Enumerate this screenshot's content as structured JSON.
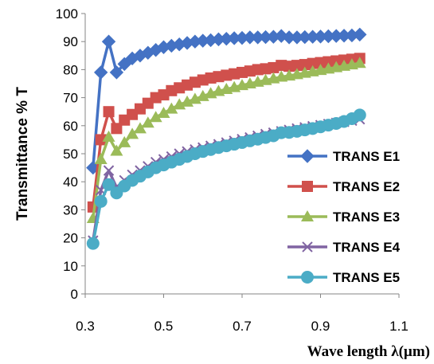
{
  "chart_data": {
    "type": "line",
    "xlabel": "Wave length  λ(µm)",
    "ylabel": "Transmittance % T",
    "xlim": [
      0.3,
      1.1
    ],
    "ylim": [
      0,
      100
    ],
    "xticks": [
      "0.3",
      "0.5",
      "0.7",
      "0.9",
      "1.1"
    ],
    "yticks": [
      "0",
      "10",
      "20",
      "30",
      "40",
      "50",
      "60",
      "70",
      "80",
      "90",
      "100"
    ],
    "grid": false,
    "legend_position": "right",
    "x": [
      0.32,
      0.34,
      0.36,
      0.38,
      0.4,
      0.42,
      0.44,
      0.46,
      0.48,
      0.5,
      0.52,
      0.54,
      0.56,
      0.58,
      0.6,
      0.62,
      0.64,
      0.66,
      0.68,
      0.7,
      0.72,
      0.74,
      0.76,
      0.78,
      0.8,
      0.82,
      0.84,
      0.86,
      0.88,
      0.9,
      0.92,
      0.94,
      0.96,
      0.98,
      1.0
    ],
    "series": [
      {
        "name": "TRANS E1",
        "color": "#4472c4",
        "marker": "diamond",
        "values": [
          45,
          79,
          90,
          79,
          82,
          84,
          85,
          86,
          87,
          88,
          88.5,
          89,
          89.5,
          90,
          90.3,
          90.5,
          90.8,
          91,
          91.2,
          91.3,
          91.5,
          91.5,
          91.6,
          91.7,
          92,
          91.5,
          91.5,
          91.6,
          91.7,
          91.8,
          91.9,
          92,
          92.1,
          92.2,
          92.5
        ]
      },
      {
        "name": "TRANS E2",
        "color": "#d0504c",
        "marker": "square",
        "values": [
          31,
          55,
          65,
          59,
          62,
          64,
          66,
          68,
          70,
          71,
          72.5,
          73.5,
          74.5,
          75.5,
          76.3,
          77,
          77.5,
          78,
          78.5,
          79,
          79.5,
          80,
          80.3,
          80.7,
          81.5,
          81.2,
          81.5,
          81.8,
          82.2,
          82.5,
          82.8,
          83.1,
          83.4,
          83.7,
          84
        ]
      },
      {
        "name": "TRANS E3",
        "color": "#9bbb59",
        "marker": "triangle",
        "values": [
          27,
          48,
          56,
          51,
          54,
          57,
          59,
          61,
          63,
          64.5,
          66,
          67.5,
          68.5,
          69.5,
          70.5,
          71.5,
          72.3,
          73,
          73.7,
          74.4,
          75,
          75.6,
          76.2,
          76.8,
          77.4,
          77.8,
          78.3,
          78.8,
          79.3,
          79.8,
          80.3,
          80.8,
          81.3,
          81.8,
          82.3
        ]
      },
      {
        "name": "TRANS E4",
        "color": "#8064a2",
        "marker": "x",
        "values": [
          19,
          37,
          44,
          38,
          40.5,
          42.5,
          44,
          45.5,
          47,
          48,
          49,
          50,
          50.8,
          51.5,
          52.2,
          52.8,
          53.4,
          54,
          54.6,
          55.2,
          55.8,
          56.4,
          57,
          57.5,
          58,
          58.5,
          59,
          59.4,
          59.8,
          60.2,
          60.6,
          61,
          61.4,
          61.8,
          62.3
        ]
      },
      {
        "name": "TRANS E5",
        "color": "#4bacc6",
        "marker": "circle",
        "values": [
          18,
          33,
          39,
          36,
          38.5,
          40.5,
          42,
          43.5,
          45,
          46,
          47,
          48,
          49,
          50,
          50.8,
          51.5,
          52.2,
          52.8,
          53.4,
          54,
          54.6,
          55.2,
          55.8,
          56.4,
          57.5,
          57.6,
          58,
          58.5,
          59,
          59.6,
          60.2,
          60.8,
          61.5,
          62.5,
          63.8
        ]
      }
    ]
  }
}
